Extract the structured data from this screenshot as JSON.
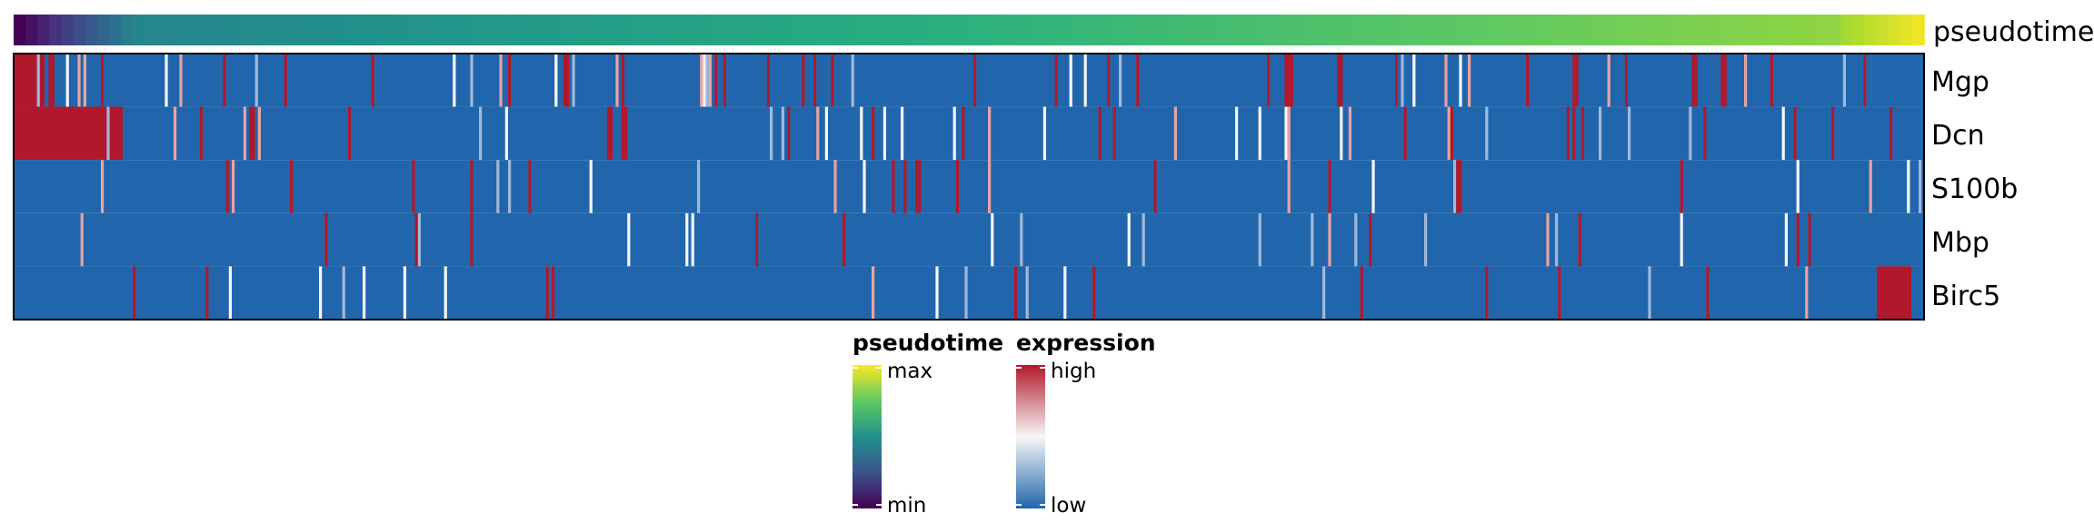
{
  "chart_data": {
    "type": "heatmap",
    "annotation_track": {
      "label": "pseudotime",
      "colormap": [
        "#440154",
        "#472d7b",
        "#3b528b",
        "#2c728e",
        "#21918c",
        "#28ae80",
        "#5ec962",
        "#addc30",
        "#fde725"
      ]
    },
    "rows": [
      "Mgp",
      "Dcn",
      "S100b",
      "Mbp",
      "Birc5"
    ],
    "expression_colors": {
      "low": "#2166ac",
      "mid": "#f7f7f7",
      "high": "#b2182b"
    },
    "legends": [
      {
        "title": "pseudotime",
        "max_label": "max",
        "min_label": "min"
      },
      {
        "title": "expression",
        "max_label": "high",
        "min_label": "low"
      }
    ]
  }
}
